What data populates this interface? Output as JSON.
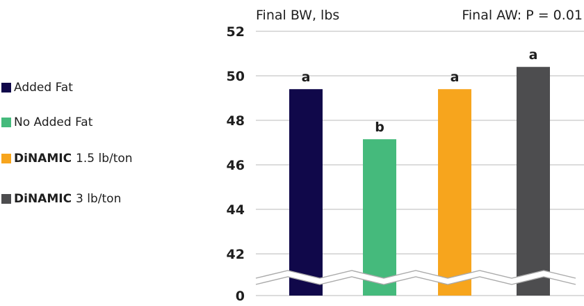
{
  "chart_data": {
    "type": "bar",
    "title": "Final BW, lbs",
    "annotation": "Final AW: P = 0.01",
    "xlabel": "",
    "ylabel": "",
    "ylim": [
      40,
      52
    ],
    "axis_break": true,
    "y_ticks": [
      {
        "value": 0,
        "label": "0"
      },
      {
        "value": 42,
        "label": "42"
      },
      {
        "value": 44,
        "label": "44"
      },
      {
        "value": 46,
        "label": "46"
      },
      {
        "value": 48,
        "label": "48"
      },
      {
        "value": 50,
        "label": "50"
      },
      {
        "value": 52,
        "label": "52"
      }
    ],
    "grid": true,
    "legend_position": "left",
    "series": [
      {
        "name_plain": "Added Fat",
        "brand": "",
        "suffix": "",
        "value": 49.4,
        "letter": "a",
        "color": "#10084a"
      },
      {
        "name_plain": "No Added Fat",
        "brand": "",
        "suffix": "",
        "value": 47.15,
        "letter": "b",
        "color": "#45ba7c"
      },
      {
        "name_plain": "",
        "brand": "DiNAMIC",
        "suffix": "1.5 lb/ton",
        "value": 49.4,
        "letter": "a",
        "color": "#f7a51d"
      },
      {
        "name_plain": "",
        "brand": "DiNAMIC",
        "suffix": "3 lb/ton",
        "value": 50.4,
        "letter": "a",
        "color": "#4d4d4f"
      }
    ]
  }
}
